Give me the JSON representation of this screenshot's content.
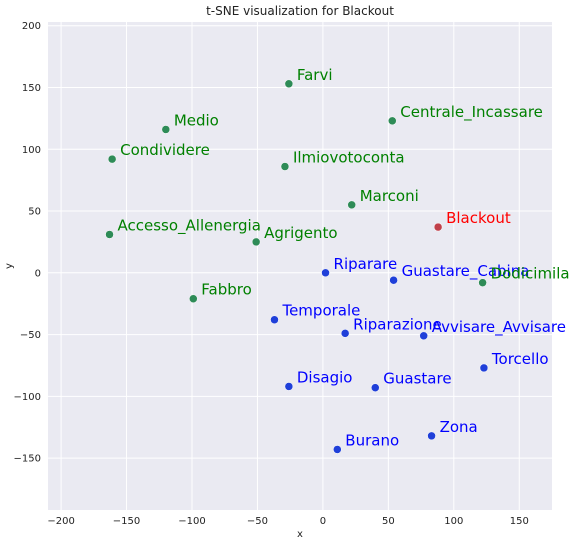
{
  "chart_data": {
    "type": "scatter",
    "title": "t-SNE visualization for Blackout",
    "xlabel": "x",
    "ylabel": "y",
    "xlim": [
      -210,
      175
    ],
    "ylim": [
      -192,
      203
    ],
    "xticks": [
      -200,
      -150,
      -100,
      -50,
      0,
      50,
      100,
      150
    ],
    "yticks": [
      -150,
      -100,
      -50,
      0,
      50,
      100,
      150,
      200
    ],
    "grid": true,
    "colors": {
      "background": "#eaeaf2",
      "grid": "#ffffff",
      "green_text": "#008000",
      "blue_text": "#0000ff",
      "red_text": "#ff0000",
      "green_marker": "#2e8b57",
      "blue_marker": "#1f3fd9",
      "red_marker": "#c0404a"
    },
    "points": [
      {
        "label": "Farvi",
        "x": -26,
        "y": 153,
        "group": "green"
      },
      {
        "label": "Centrale_Incassare",
        "x": 53,
        "y": 123,
        "group": "green"
      },
      {
        "label": "Medio",
        "x": -120,
        "y": 116,
        "group": "green"
      },
      {
        "label": "Condividere",
        "x": -161,
        "y": 92,
        "group": "green"
      },
      {
        "label": "Ilmiovotoconta",
        "x": -29,
        "y": 86,
        "group": "green"
      },
      {
        "label": "Marconi",
        "x": 22,
        "y": 55,
        "group": "green"
      },
      {
        "label": "Blackout",
        "x": 88,
        "y": 37,
        "group": "red"
      },
      {
        "label": "Accesso_Allenergia",
        "x": -163,
        "y": 31,
        "group": "green"
      },
      {
        "label": "Agrigento",
        "x": -51,
        "y": 25,
        "group": "green"
      },
      {
        "label": "Riparare",
        "x": 2,
        "y": 0,
        "group": "blue"
      },
      {
        "label": "Guastare_Cabina",
        "x": 54,
        "y": -6,
        "group": "blue"
      },
      {
        "label": "Dodicimila",
        "x": 122,
        "y": -8,
        "group": "green"
      },
      {
        "label": "Fabbro",
        "x": -99,
        "y": -21,
        "group": "green"
      },
      {
        "label": "Temporale",
        "x": -37,
        "y": -38,
        "group": "blue"
      },
      {
        "label": "Riparazione",
        "x": 17,
        "y": -49,
        "group": "blue"
      },
      {
        "label": "Avvisare_Avvisare",
        "x": 77,
        "y": -51,
        "group": "blue"
      },
      {
        "label": "Torcello",
        "x": 123,
        "y": -77,
        "group": "blue"
      },
      {
        "label": "Disagio",
        "x": -26,
        "y": -92,
        "group": "blue"
      },
      {
        "label": "Guastare",
        "x": 40,
        "y": -93,
        "group": "blue"
      },
      {
        "label": "Zona",
        "x": 83,
        "y": -132,
        "group": "blue"
      },
      {
        "label": "Burano",
        "x": 11,
        "y": -143,
        "group": "blue"
      }
    ]
  }
}
